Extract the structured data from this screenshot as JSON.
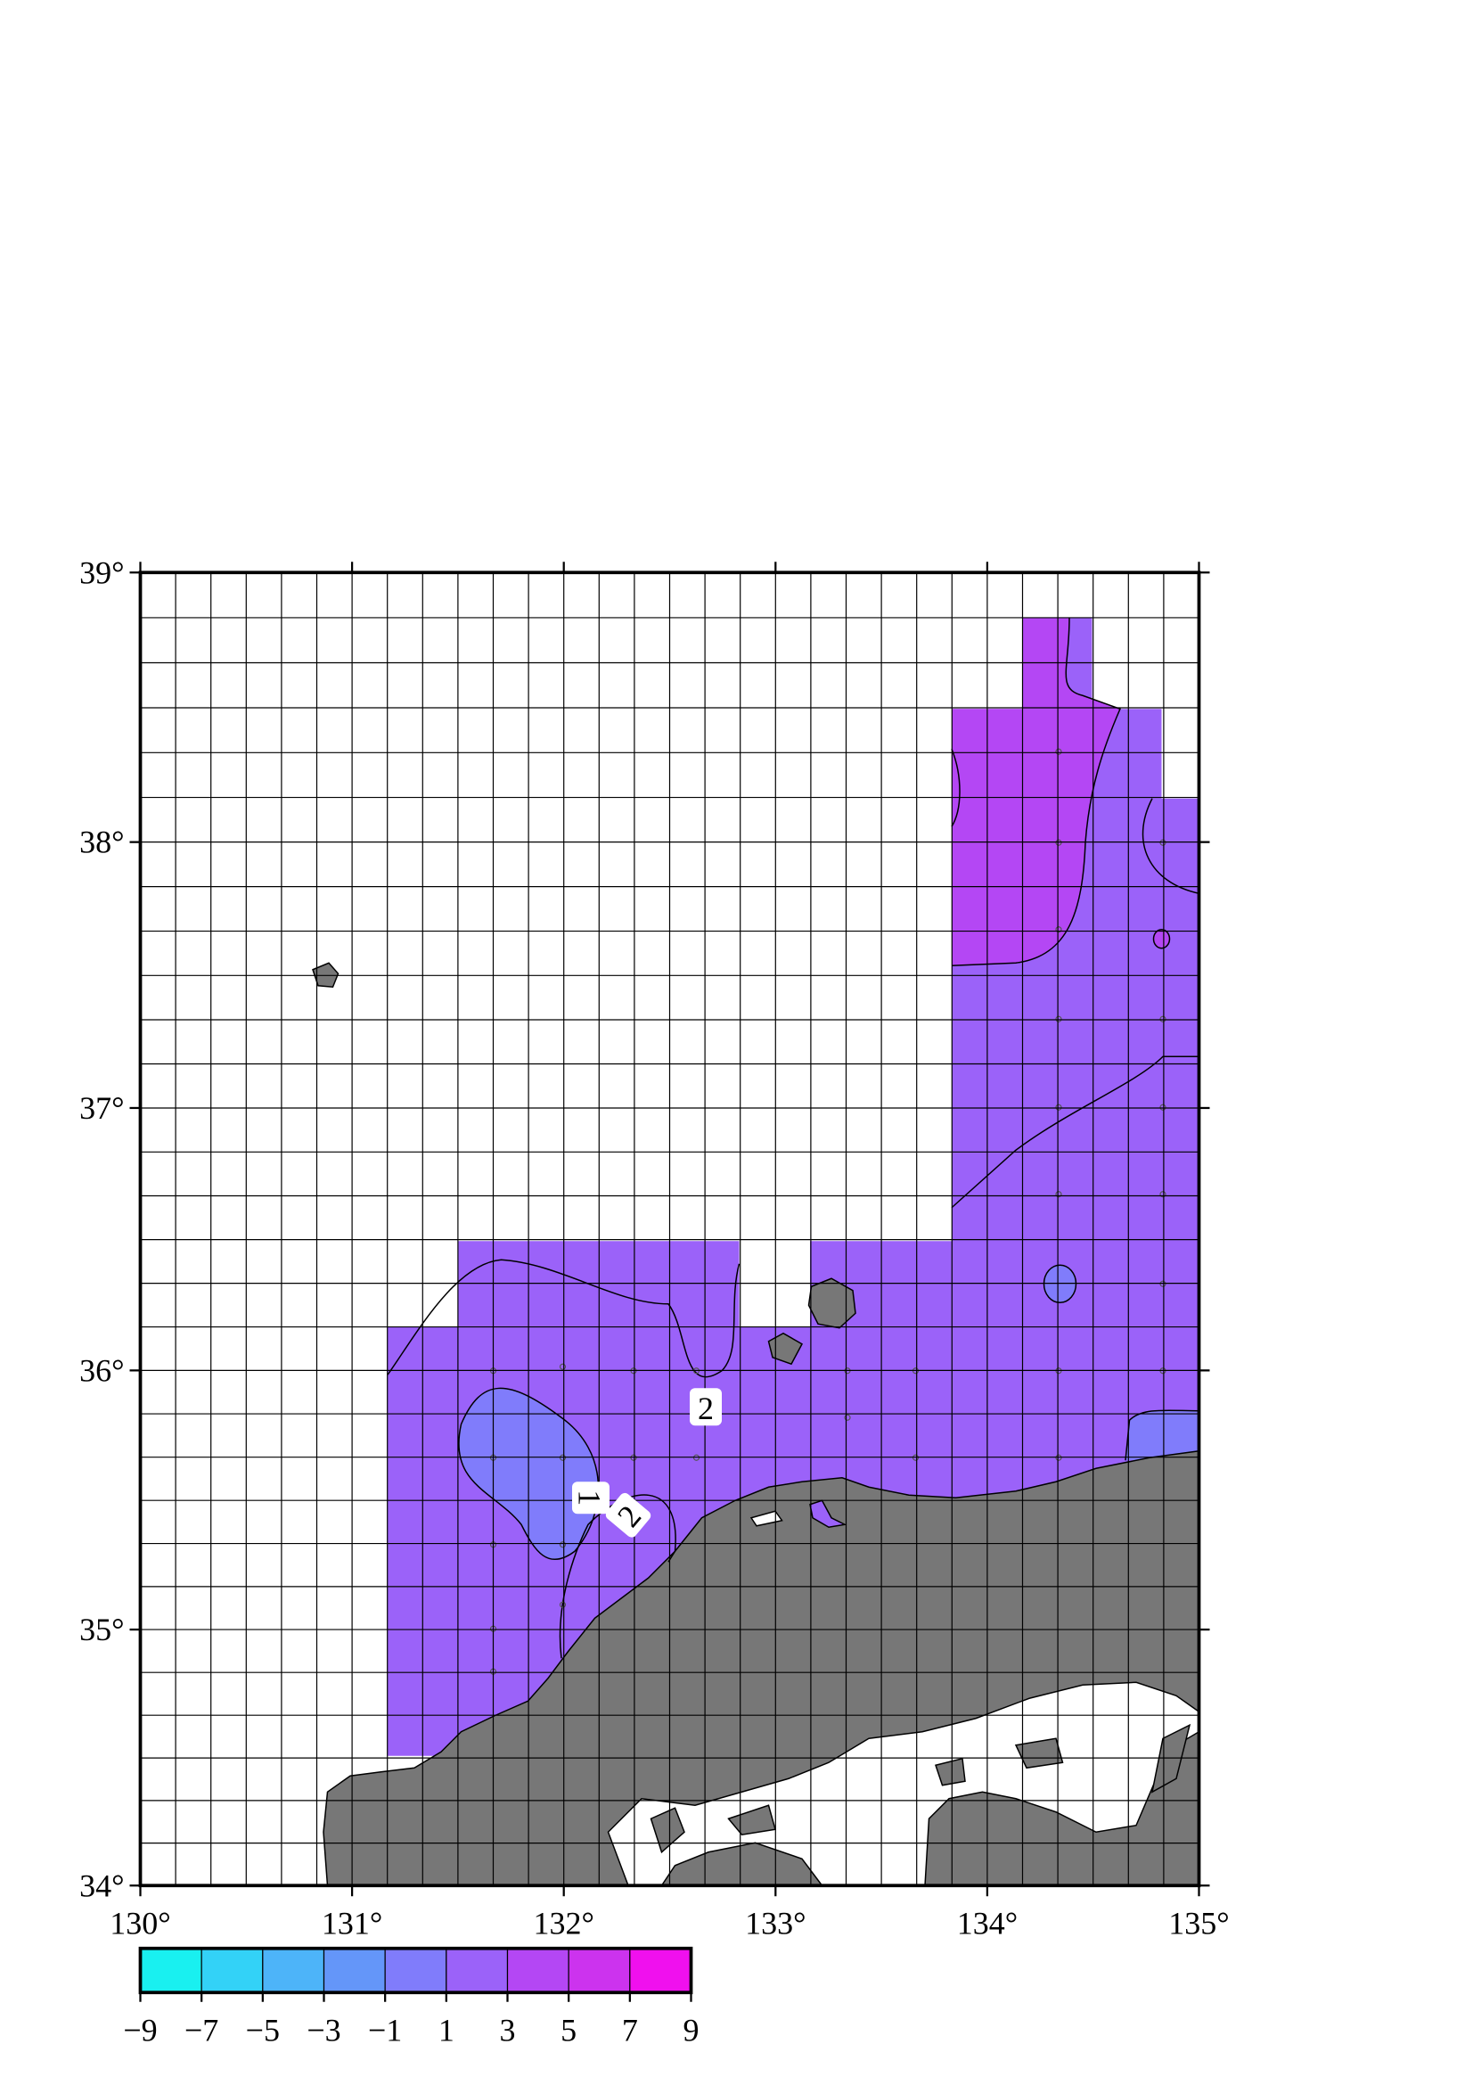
{
  "chart_data": {
    "type": "map",
    "projection": "mercator",
    "xlim": [
      130,
      135
    ],
    "ylim": [
      34,
      39
    ],
    "grid": true,
    "land_color": "#777777",
    "xticks": [
      {
        "value": 130,
        "label": "130°"
      },
      {
        "value": 131,
        "label": "131°"
      },
      {
        "value": 132,
        "label": "132°"
      },
      {
        "value": 133,
        "label": "133°"
      },
      {
        "value": 134,
        "label": "134°"
      },
      {
        "value": 135,
        "label": "135°"
      }
    ],
    "yticks": [
      {
        "value": 34,
        "label": "34°"
      },
      {
        "value": 35,
        "label": "35°"
      },
      {
        "value": 36,
        "label": "36°"
      },
      {
        "value": 37,
        "label": "37°"
      },
      {
        "value": 38,
        "label": "38°"
      },
      {
        "value": 39,
        "label": "39°"
      }
    ],
    "contour_labels": [
      2,
      1,
      2
    ],
    "colorbar": {
      "ticks": [
        {
          "value": -9,
          "label": "−9"
        },
        {
          "value": -7,
          "label": "−7"
        },
        {
          "value": -5,
          "label": "−5"
        },
        {
          "value": -3,
          "label": "−3"
        },
        {
          "value": -1,
          "label": "−1"
        },
        1,
        3,
        5,
        7,
        9
      ],
      "colors": [
        "#19f0f0",
        "#33d2f7",
        "#4db4f9",
        "#6496f9",
        "#807cfb",
        "#9b62f9",
        "#b447f4",
        "#cc33ee",
        "#f010ee"
      ]
    }
  }
}
